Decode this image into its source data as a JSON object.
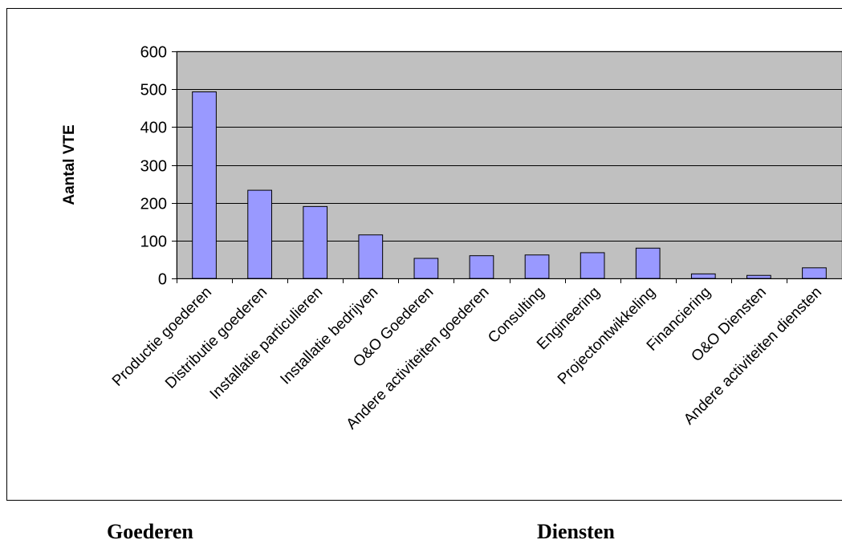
{
  "chart_data": {
    "type": "bar",
    "title": "",
    "xlabel": "",
    "ylabel": "Aantal VTE",
    "ylim": [
      0,
      600
    ],
    "yticks": [
      0,
      100,
      200,
      300,
      400,
      500,
      600
    ],
    "grid": true,
    "legend": "none",
    "categories": [
      "Productie goederen",
      "Distributie goederen",
      "Installatie particulieren",
      "Installatie bedrijven",
      "O&O Goederen",
      "Andere activiteiten goederen",
      "Consulting",
      "Engineering",
      "Projectontwikkeling",
      "Financiering",
      "O&O Diensten",
      "Andere activiteiten diensten"
    ],
    "values": [
      493,
      233,
      190,
      115,
      53,
      60,
      62,
      68,
      80,
      12,
      8,
      28
    ],
    "colors": {
      "plot_background": "#c0c0c0",
      "bar_fill": "#9999ff",
      "bar_stroke": "#000000",
      "gridline": "#000000"
    }
  },
  "groups": {
    "left_label": "Goederen",
    "right_label": "Diensten"
  }
}
